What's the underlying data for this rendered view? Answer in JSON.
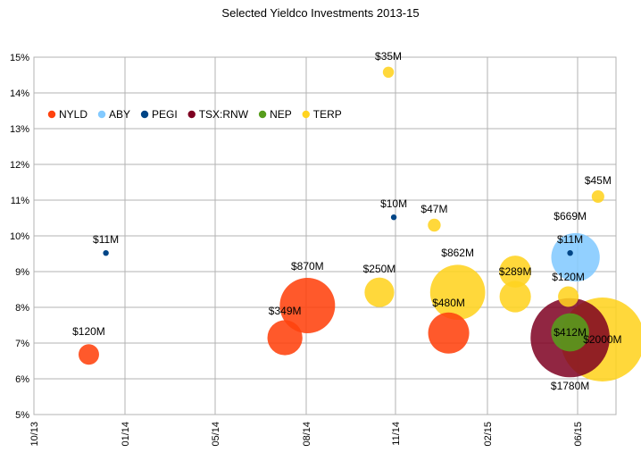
{
  "chart_data": {
    "type": "scatter",
    "title": "Selected Yieldco Investments 2013-15",
    "xlabel": "",
    "ylabel": "",
    "x_ticks": [
      "10/13",
      "01/14",
      "05/14",
      "08/14",
      "11/14",
      "02/15",
      "06/15"
    ],
    "y_ticks": [
      "5%",
      "6%",
      "7%",
      "8%",
      "9%",
      "10%",
      "11%",
      "12%",
      "13%",
      "14%",
      "15%"
    ],
    "xlim": [
      "2013-10-01",
      "2015-07-10"
    ],
    "ylim": [
      5,
      15
    ],
    "grid": true,
    "legend_position": "top-left",
    "series": [
      {
        "name": "NYLD",
        "color": "#ff420e",
        "points": [
          {
            "x": "2013-12-01",
            "y": 6.68,
            "size_musd": 120,
            "label": "$120M"
          },
          {
            "x": "2014-07-07",
            "y": 7.15,
            "size_musd": 349,
            "label": "$349M"
          },
          {
            "x": "2014-08-01",
            "y": 8.05,
            "size_musd": 870,
            "label": "$870M"
          },
          {
            "x": "2015-01-05",
            "y": 7.28,
            "size_musd": 480,
            "label": "$480M"
          }
        ]
      },
      {
        "name": "ABY",
        "color": "#83caff",
        "points": [
          {
            "x": "2015-05-26",
            "y": 9.4,
            "size_musd": 669,
            "label": "$669M"
          }
        ]
      },
      {
        "name": "PEGI",
        "color": "#004586",
        "points": [
          {
            "x": "2013-12-20",
            "y": 9.52,
            "size_musd": 11,
            "label": "$11M"
          },
          {
            "x": "2014-11-05",
            "y": 10.52,
            "size_musd": 10,
            "label": "$10M"
          },
          {
            "x": "2015-05-20",
            "y": 9.52,
            "size_musd": 11,
            "label": "$11M"
          }
        ]
      },
      {
        "name": "TSX:RNW",
        "color": "#7e0021",
        "points": [
          {
            "x": "2015-05-20",
            "y": 7.15,
            "size_musd": 1780,
            "label": "$1780M"
          }
        ]
      },
      {
        "name": "NEP",
        "color": "#579d1c",
        "points": [
          {
            "x": "2015-05-20",
            "y": 7.3,
            "size_musd": 412,
            "label": "$412M"
          }
        ]
      },
      {
        "name": "TERP",
        "color": "#ffd320",
        "points": [
          {
            "x": "2014-10-30",
            "y": 14.58,
            "size_musd": 35,
            "label": "$35M"
          },
          {
            "x": "2014-10-20",
            "y": 8.42,
            "size_musd": 250,
            "label": "$250M"
          },
          {
            "x": "2014-12-20",
            "y": 10.3,
            "size_musd": 47,
            "label": "$47M"
          },
          {
            "x": "2015-01-15",
            "y": 8.42,
            "size_musd": 862,
            "label": "$862M"
          },
          {
            "x": "2015-03-20",
            "y": 9.0,
            "size_musd": 289,
            "label": "$289M"
          },
          {
            "x": "2015-03-20",
            "y": 8.3,
            "size_musd": 280,
            "label": ""
          },
          {
            "x": "2015-05-18",
            "y": 8.3,
            "size_musd": 120,
            "label": "$120M"
          },
          {
            "x": "2015-06-20",
            "y": 11.1,
            "size_musd": 45,
            "label": "$45M"
          },
          {
            "x": "2015-06-25",
            "y": 7.1,
            "size_musd": 2000,
            "label": "$2000M"
          }
        ]
      }
    ]
  }
}
